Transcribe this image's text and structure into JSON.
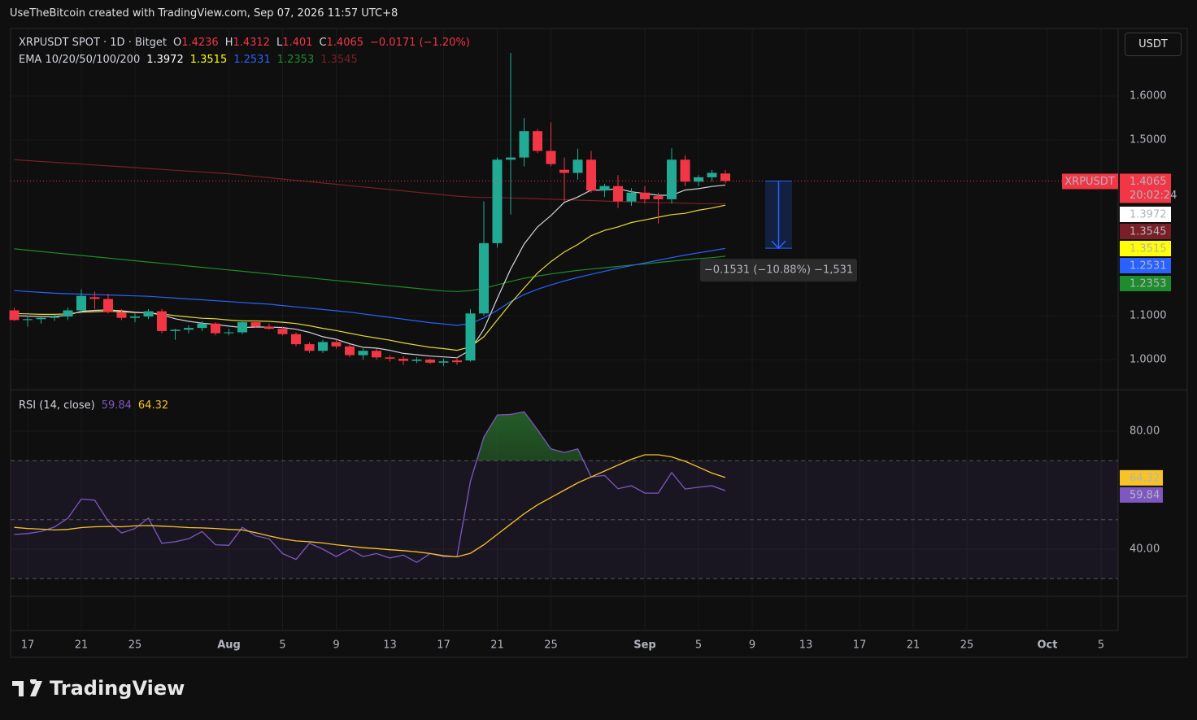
{
  "header": {
    "text": "UseTheBitcoin created with TradingView.com, Sep 07, 2026 11:57 UTC+8"
  },
  "currency": "USDT",
  "footer": {
    "logo": "TradingView"
  },
  "chart_data": [
    {
      "type": "candlestick",
      "title": "XRPUSDT SPOT · 1D · Bitget",
      "ohlc_labels": [
        "O",
        "H",
        "L",
        "C"
      ],
      "change": "−0.0171 (−1.20%)",
      "symbol_tag": "XRPUSDT",
      "countdown": "20:02:24",
      "up_color": "#22ab94",
      "down_color": "#f23645",
      "x": [
        "Jul 16",
        "Jul 17",
        "Jul 18",
        "Jul 19",
        "Jul 20",
        "Jul 21",
        "Jul 22",
        "Jul 23",
        "Jul 24",
        "Jul 25",
        "Jul 26",
        "Jul 27",
        "Jul 28",
        "Jul 29",
        "Jul 30",
        "Jul 31",
        "Aug 1",
        "Aug 2",
        "Aug 3",
        "Aug 4",
        "Aug 5",
        "Aug 6",
        "Aug 7",
        "Aug 8",
        "Aug 9",
        "Aug 10",
        "Aug 11",
        "Aug 12",
        "Aug 13",
        "Aug 14",
        "Aug 15",
        "Aug 16",
        "Aug 17",
        "Aug 18",
        "Aug 19",
        "Aug 20",
        "Aug 21",
        "Aug 22",
        "Aug 23",
        "Aug 24",
        "Aug 25",
        "Aug 26",
        "Aug 27",
        "Aug 28",
        "Aug 29",
        "Aug 30",
        "Aug 31",
        "Sep 1",
        "Sep 2",
        "Sep 3",
        "Sep 4",
        "Sep 5",
        "Sep 6",
        "Sep 7"
      ],
      "open": [
        1.112,
        1.09,
        1.092,
        1.095,
        1.098,
        1.112,
        1.142,
        1.138,
        1.108,
        1.095,
        1.098,
        1.11,
        1.065,
        1.068,
        1.072,
        1.082,
        1.06,
        1.062,
        1.085,
        1.075,
        1.07,
        1.058,
        1.035,
        1.02,
        1.04,
        1.03,
        1.01,
        1.02,
        1.005,
        1.002,
        0.997,
        1.0,
        0.993,
        0.998,
        0.998,
        1.105,
        1.265,
        1.455,
        1.46,
        1.52,
        1.475,
        1.432,
        1.425,
        1.455,
        1.385,
        1.395,
        1.36,
        1.38,
        1.372,
        1.365,
        1.455,
        1.405,
        1.415,
        1.4236
      ],
      "high": [
        1.118,
        1.1,
        1.098,
        1.102,
        1.118,
        1.16,
        1.155,
        1.15,
        1.115,
        1.105,
        1.115,
        1.115,
        1.07,
        1.078,
        1.088,
        1.085,
        1.07,
        1.09,
        1.09,
        1.082,
        1.075,
        1.062,
        1.04,
        1.045,
        1.045,
        1.035,
        1.025,
        1.025,
        1.01,
        1.008,
        1.005,
        1.002,
        1.002,
        1.005,
        1.115,
        1.36,
        1.46,
        1.698,
        1.55,
        1.525,
        1.54,
        1.46,
        1.48,
        1.475,
        1.4,
        1.42,
        1.39,
        1.395,
        1.38,
        1.481,
        1.465,
        1.42,
        1.432,
        1.4312
      ],
      "low": [
        1.088,
        1.075,
        1.082,
        1.088,
        1.09,
        1.105,
        1.115,
        1.105,
        1.09,
        1.085,
        1.092,
        1.06,
        1.045,
        1.06,
        1.065,
        1.055,
        1.055,
        1.058,
        1.072,
        1.068,
        1.055,
        1.03,
        1.015,
        1.015,
        1.025,
        1.005,
        1.0,
        1.0,
        0.995,
        0.988,
        0.992,
        0.99,
        0.985,
        0.988,
        0.995,
        1.1,
        1.255,
        1.33,
        1.44,
        1.47,
        1.44,
        1.36,
        1.41,
        1.38,
        1.37,
        1.345,
        1.35,
        1.355,
        1.31,
        1.355,
        1.395,
        1.395,
        1.405,
        1.401
      ],
      "close": [
        1.09,
        1.092,
        1.095,
        1.098,
        1.112,
        1.145,
        1.138,
        1.108,
        1.095,
        1.098,
        1.11,
        1.065,
        1.068,
        1.072,
        1.082,
        1.06,
        1.062,
        1.085,
        1.075,
        1.07,
        1.058,
        1.035,
        1.02,
        1.04,
        1.03,
        1.01,
        1.02,
        1.005,
        1.002,
        0.997,
        1.0,
        0.993,
        0.996,
        0.994,
        1.105,
        1.265,
        1.455,
        1.46,
        1.52,
        1.475,
        1.445,
        1.425,
        1.455,
        1.385,
        1.395,
        1.36,
        1.38,
        1.365,
        1.365,
        1.455,
        1.405,
        1.415,
        1.425,
        1.4065
      ],
      "overlay_title": "EMA 10/20/50/100/200",
      "series": [
        {
          "color": "#d1d4dc",
          "tag_text": "#000000",
          "values": [
            1.1,
            1.099,
            1.098,
            1.098,
            1.101,
            1.11,
            1.112,
            1.113,
            1.111,
            1.108,
            1.106,
            1.102,
            1.093,
            1.087,
            1.083,
            1.08,
            1.076,
            1.073,
            1.074,
            1.074,
            1.073,
            1.069,
            1.062,
            1.052,
            1.046,
            1.036,
            1.028,
            1.026,
            1.021,
            1.014,
            1.011,
            1.008,
            1.006,
            1.004,
            1.022,
            1.069,
            1.139,
            1.206,
            1.263,
            1.302,
            1.328,
            1.358,
            1.37,
            1.386,
            1.386,
            1.389,
            1.382,
            1.378,
            1.374,
            1.374,
            1.386,
            1.389,
            1.394,
            1.3972
          ]
        },
        {
          "color": "#e6d93a",
          "tag_text": "#000000",
          "values": [
            1.105,
            1.104,
            1.103,
            1.103,
            1.104,
            1.108,
            1.109,
            1.11,
            1.109,
            1.107,
            1.106,
            1.104,
            1.1,
            1.097,
            1.094,
            1.093,
            1.09,
            1.088,
            1.088,
            1.087,
            1.085,
            1.082,
            1.077,
            1.071,
            1.066,
            1.06,
            1.054,
            1.049,
            1.044,
            1.038,
            1.033,
            1.028,
            1.025,
            1.021,
            1.029,
            1.052,
            1.09,
            1.128,
            1.163,
            1.197,
            1.223,
            1.245,
            1.262,
            1.282,
            1.294,
            1.302,
            1.312,
            1.318,
            1.324,
            1.33,
            1.333,
            1.34,
            1.345,
            1.3515
          ]
        },
        {
          "color": "#2962ff",
          "tag_text": "#ffffff",
          "values": [
            1.157,
            1.155,
            1.153,
            1.151,
            1.15,
            1.149,
            1.148,
            1.147,
            1.146,
            1.145,
            1.144,
            1.142,
            1.14,
            1.138,
            1.136,
            1.134,
            1.132,
            1.13,
            1.128,
            1.126,
            1.123,
            1.12,
            1.117,
            1.114,
            1.111,
            1.108,
            1.104,
            1.1,
            1.096,
            1.092,
            1.088,
            1.084,
            1.081,
            1.078,
            1.082,
            1.095,
            1.112,
            1.132,
            1.148,
            1.16,
            1.17,
            1.179,
            1.187,
            1.194,
            1.201,
            1.208,
            1.214,
            1.22,
            1.226,
            1.232,
            1.238,
            1.243,
            1.248,
            1.2531
          ]
        },
        {
          "color": "#1e8c2a",
          "tag_text": "#ffffff",
          "values": [
            1.252,
            1.249,
            1.246,
            1.243,
            1.24,
            1.237,
            1.234,
            1.231,
            1.228,
            1.225,
            1.222,
            1.219,
            1.216,
            1.213,
            1.21,
            1.207,
            1.204,
            1.201,
            1.198,
            1.195,
            1.192,
            1.189,
            1.186,
            1.183,
            1.18,
            1.177,
            1.174,
            1.171,
            1.168,
            1.165,
            1.162,
            1.159,
            1.156,
            1.155,
            1.157,
            1.162,
            1.17,
            1.178,
            1.185,
            1.19,
            1.195,
            1.199,
            1.203,
            1.206,
            1.209,
            1.212,
            1.215,
            1.218,
            1.221,
            1.224,
            1.227,
            1.23,
            1.232,
            1.2353
          ]
        },
        {
          "color": "#7a1f26",
          "tag_text": "#ffffff",
          "values": [
            1.455,
            1.453,
            1.451,
            1.449,
            1.447,
            1.445,
            1.443,
            1.441,
            1.439,
            1.437,
            1.435,
            1.433,
            1.431,
            1.429,
            1.427,
            1.425,
            1.423,
            1.42,
            1.417,
            1.414,
            1.411,
            1.408,
            1.405,
            1.402,
            1.399,
            1.396,
            1.393,
            1.39,
            1.387,
            1.384,
            1.381,
            1.378,
            1.375,
            1.372,
            1.37,
            1.369,
            1.369,
            1.368,
            1.367,
            1.366,
            1.365,
            1.364,
            1.363,
            1.362,
            1.361,
            1.36,
            1.359,
            1.358,
            1.357,
            1.357,
            1.356,
            1.355,
            1.355,
            1.3545
          ]
        }
      ],
      "ylim": [
        0.9333,
        1.7537
      ],
      "yticks": [
        {
          "value": 1.6,
          "label": "1.6000"
        },
        {
          "value": 1.5,
          "label": "1.5000"
        },
        {
          "value": 1.1,
          "label": "1.1000"
        },
        {
          "value": 1.0,
          "label": "1.0000"
        }
      ],
      "xlim": [
        "Jul 16",
        "Oct 6"
      ],
      "xticks": [
        {
          "value": "Jul 17",
          "label": "17"
        },
        {
          "value": "Jul 21",
          "label": "21"
        },
        {
          "value": "Jul 25",
          "label": "25"
        },
        {
          "value": "Aug 1",
          "label": "Aug"
        },
        {
          "value": "Aug 5",
          "label": "5"
        },
        {
          "value": "Aug 9",
          "label": "9"
        },
        {
          "value": "Aug 13",
          "label": "13"
        },
        {
          "value": "Aug 17",
          "label": "17"
        },
        {
          "value": "Aug 21",
          "label": "21"
        },
        {
          "value": "Aug 25",
          "label": "25"
        },
        {
          "value": "Sep 1",
          "label": "Sep"
        },
        {
          "value": "Sep 5",
          "label": "5"
        },
        {
          "value": "Sep 9",
          "label": "9"
        },
        {
          "value": "Sep 13",
          "label": "13"
        },
        {
          "value": "Sep 17",
          "label": "17"
        },
        {
          "value": "Sep 21",
          "label": "21"
        },
        {
          "value": "Sep 25",
          "label": "25"
        },
        {
          "value": "Oct 1",
          "label": "Oct"
        },
        {
          "value": "Oct 5",
          "label": "5"
        }
      ],
      "measure": {
        "values": [
          1.4065,
          1.2534
        ],
        "label": "−0.1531 (−10.88%) −1,531",
        "color": "#2962ff"
      }
    },
    {
      "type": "line",
      "title": "RSI (14, close)",
      "series": [
        {
          "color": "#7e57c2",
          "values": [
            45,
            45.3,
            46,
            47.5,
            50.5,
            57,
            56.6,
            49.5,
            45.5,
            47,
            50.5,
            42,
            42.5,
            43.5,
            46,
            41.5,
            41.3,
            47.4,
            44.5,
            43.5,
            38.5,
            36.5,
            42,
            40,
            37.5,
            40,
            37.5,
            38.5,
            37,
            38,
            35.5,
            38.5,
            37.5,
            37.5,
            63,
            78,
            85.5,
            85.7,
            86.6,
            80.5,
            74,
            72.8,
            74,
            64.5,
            65,
            60.5,
            61.5,
            59,
            59,
            66,
            60.4,
            61,
            61.5,
            59.84
          ]
        },
        {
          "color": "#f7c325",
          "values": [
            47.4,
            47,
            46.8,
            46.5,
            46.7,
            47.3,
            47.6,
            47.7,
            47.6,
            47.9,
            48,
            47.8,
            47.6,
            47.3,
            47.2,
            47,
            46.7,
            46.5,
            45.6,
            44.5,
            43.5,
            42.8,
            42.5,
            42.1,
            41.5,
            41,
            40.5,
            40.2,
            39.8,
            39.5,
            39.1,
            38.5,
            37.8,
            37.4,
            38.6,
            41.5,
            45,
            48.5,
            52,
            55,
            57.5,
            60,
            62.5,
            64.5,
            66.5,
            68.5,
            70.5,
            72,
            72,
            71.3,
            69.8,
            67.8,
            65.8,
            64.32
          ]
        }
      ],
      "ylim": [
        24,
        93.8
      ],
      "yticks": [
        {
          "value": 80,
          "label": "80.00"
        },
        {
          "value": 40,
          "label": "40.00"
        }
      ],
      "bands": [
        70,
        50,
        30
      ]
    }
  ]
}
